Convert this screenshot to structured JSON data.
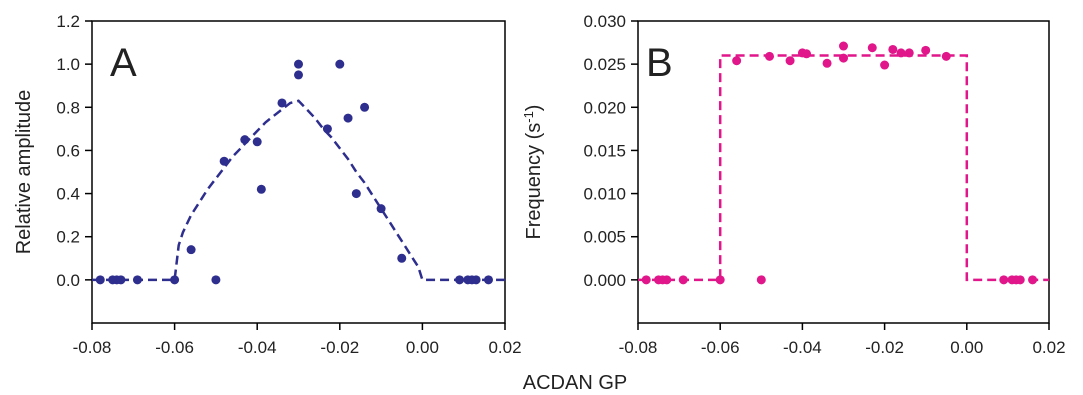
{
  "shared_xlabel": "ACDAN GP",
  "chart_data": [
    {
      "type": "scatter",
      "panel_label": "A",
      "xlabel": "",
      "ylabel": "Relative amplitude",
      "xlim": [
        -0.08,
        0.02
      ],
      "ylim": [
        -0.2,
        1.2
      ],
      "x_ticks": [
        -0.08,
        -0.06,
        -0.04,
        -0.02,
        0.0,
        0.02
      ],
      "x_tick_labels": [
        "-0.08",
        "-0.06",
        "-0.04",
        "-0.02",
        "0.00",
        "0.02"
      ],
      "y_ticks": [
        0.0,
        0.2,
        0.4,
        0.6,
        0.8,
        1.0,
        1.2
      ],
      "y_tick_labels": [
        "0.0",
        "0.2",
        "0.4",
        "0.6",
        "0.8",
        "1.0",
        "1.2"
      ],
      "grid": false,
      "color": "#2e2e8f",
      "points": {
        "x": [
          -0.078,
          -0.075,
          -0.074,
          -0.073,
          -0.069,
          -0.06,
          -0.056,
          -0.05,
          -0.048,
          -0.043,
          -0.04,
          -0.039,
          -0.034,
          -0.03,
          -0.03,
          -0.023,
          -0.02,
          -0.018,
          -0.016,
          -0.014,
          -0.01,
          -0.005,
          0.009,
          0.011,
          0.012,
          0.013,
          0.016
        ],
        "y": [
          0.0,
          0.0,
          0.0,
          0.0,
          0.0,
          0.0,
          0.14,
          0.0,
          0.55,
          0.65,
          0.64,
          0.42,
          0.82,
          1.0,
          0.95,
          0.7,
          1.0,
          0.75,
          0.4,
          0.8,
          0.33,
          0.1,
          0.0,
          0.0,
          0.0,
          0.0,
          0.0
        ]
      },
      "fit": {
        "style": "dashed",
        "x": [
          -0.08,
          -0.06,
          -0.059,
          -0.058,
          -0.056,
          -0.054,
          -0.052,
          -0.05,
          -0.048,
          -0.046,
          -0.044,
          -0.042,
          -0.04,
          -0.038,
          -0.036,
          -0.034,
          -0.032,
          -0.03,
          -0.028,
          -0.026,
          -0.024,
          -0.022,
          -0.02,
          -0.018,
          -0.016,
          -0.014,
          -0.012,
          -0.01,
          -0.008,
          -0.006,
          -0.004,
          -0.002,
          -0.001,
          0.0,
          0.02
        ],
        "y": [
          0.0,
          0.0,
          0.16,
          0.22,
          0.3,
          0.36,
          0.42,
          0.47,
          0.52,
          0.57,
          0.61,
          0.65,
          0.69,
          0.73,
          0.76,
          0.79,
          0.82,
          0.83,
          0.79,
          0.75,
          0.7,
          0.66,
          0.61,
          0.56,
          0.5,
          0.45,
          0.39,
          0.33,
          0.27,
          0.21,
          0.15,
          0.09,
          0.06,
          0.0,
          0.0
        ]
      }
    },
    {
      "type": "scatter",
      "panel_label": "B",
      "xlabel": "",
      "ylabel": "Frequency (s",
      "ylabel_superscript": "-1",
      "ylabel_suffix": ")",
      "xlim": [
        -0.08,
        0.02
      ],
      "ylim": [
        -0.005,
        0.03
      ],
      "x_ticks": [
        -0.08,
        -0.06,
        -0.04,
        -0.02,
        0.0,
        0.02
      ],
      "x_tick_labels": [
        "-0.08",
        "-0.06",
        "-0.04",
        "-0.02",
        "0.00",
        "0.02"
      ],
      "y_ticks": [
        0.0,
        0.005,
        0.01,
        0.015,
        0.02,
        0.025,
        0.03
      ],
      "y_tick_labels": [
        "0.000",
        "0.005",
        "0.010",
        "0.015",
        "0.020",
        "0.025",
        "0.030"
      ],
      "grid": false,
      "color": "#e0168a",
      "points": {
        "x": [
          -0.078,
          -0.075,
          -0.074,
          -0.073,
          -0.069,
          -0.06,
          -0.056,
          -0.05,
          -0.048,
          -0.043,
          -0.04,
          -0.039,
          -0.034,
          -0.03,
          -0.03,
          -0.023,
          -0.02,
          -0.018,
          -0.016,
          -0.014,
          -0.01,
          -0.005,
          0.009,
          0.011,
          0.012,
          0.013,
          0.016
        ],
        "y": [
          0.0,
          0.0,
          0.0,
          0.0,
          0.0,
          0.0,
          0.0254,
          0.0,
          0.0259,
          0.0254,
          0.0263,
          0.0262,
          0.0251,
          0.0271,
          0.0257,
          0.0269,
          0.0249,
          0.0267,
          0.0263,
          0.0263,
          0.0266,
          0.0259,
          0.0,
          0.0,
          0.0,
          0.0,
          0.0
        ]
      },
      "fit": {
        "style": "dashed",
        "x": [
          -0.08,
          -0.06,
          -0.06,
          0.0,
          0.0,
          0.02
        ],
        "y": [
          0.0,
          0.0,
          0.026,
          0.026,
          0.0,
          0.0
        ]
      }
    }
  ]
}
